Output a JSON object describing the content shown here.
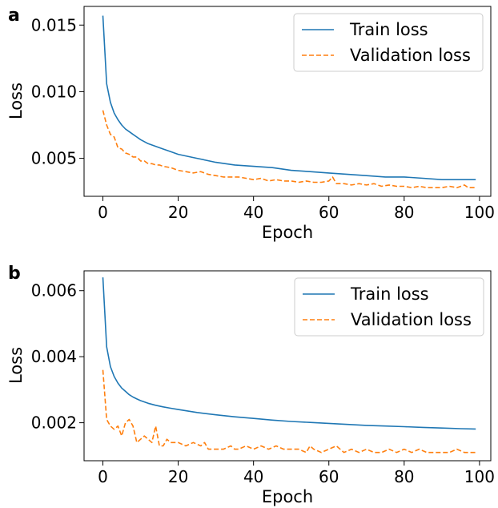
{
  "chart_data": [
    {
      "panel": "a",
      "type": "line",
      "xlabel": "Epoch",
      "ylabel": "Loss",
      "xlim": [
        -5,
        103
      ],
      "ylim": [
        0.00215,
        0.0164
      ],
      "xticks": [
        0,
        20,
        40,
        60,
        80,
        100
      ],
      "xtick_labels": [
        "0",
        "20",
        "40",
        "60",
        "80",
        "100"
      ],
      "yticks": [
        0.005,
        0.01,
        0.015
      ],
      "ytick_labels": [
        "0.005",
        "0.010",
        "0.015"
      ],
      "legend": "top-right",
      "grid": false,
      "series": [
        {
          "name": "Train loss",
          "style": "solid",
          "color": "#1f77b4",
          "x": [
            0,
            1,
            2,
            3,
            4,
            5,
            6,
            7,
            8,
            9,
            10,
            12,
            14,
            16,
            18,
            20,
            25,
            30,
            35,
            40,
            45,
            50,
            55,
            60,
            65,
            70,
            75,
            80,
            85,
            90,
            95,
            99
          ],
          "y": [
            0.0157,
            0.0106,
            0.0092,
            0.0084,
            0.0079,
            0.0075,
            0.0072,
            0.007,
            0.0068,
            0.0066,
            0.0064,
            0.0061,
            0.0059,
            0.0057,
            0.0055,
            0.0053,
            0.005,
            0.0047,
            0.0045,
            0.0044,
            0.0043,
            0.0041,
            0.004,
            0.0039,
            0.0038,
            0.0037,
            0.0036,
            0.0036,
            0.0035,
            0.0034,
            0.0034,
            0.0034
          ]
        },
        {
          "name": "Validation loss",
          "style": "dashed",
          "color": "#ff7f0e",
          "x": [
            0,
            1,
            2,
            3,
            4,
            5,
            6,
            7,
            8,
            9,
            10,
            11,
            12,
            13,
            14,
            15,
            16,
            18,
            20,
            22,
            24,
            26,
            28,
            30,
            32,
            34,
            36,
            38,
            40,
            42,
            44,
            46,
            48,
            50,
            52,
            54,
            56,
            58,
            60,
            61,
            62,
            64,
            66,
            68,
            70,
            72,
            74,
            76,
            78,
            80,
            82,
            84,
            86,
            88,
            90,
            92,
            94,
            96,
            97,
            98,
            99
          ],
          "y": [
            0.0086,
            0.0075,
            0.0068,
            0.0066,
            0.0058,
            0.0057,
            0.0054,
            0.0053,
            0.0051,
            0.0051,
            0.0048,
            0.0048,
            0.0046,
            0.0046,
            0.0045,
            0.0045,
            0.0044,
            0.0043,
            0.0041,
            0.004,
            0.0039,
            0.004,
            0.0038,
            0.0037,
            0.0036,
            0.0036,
            0.0036,
            0.0035,
            0.0034,
            0.0035,
            0.0033,
            0.0034,
            0.0033,
            0.0033,
            0.0032,
            0.0033,
            0.0032,
            0.0032,
            0.0033,
            0.0036,
            0.0031,
            0.0031,
            0.003,
            0.0031,
            0.003,
            0.0031,
            0.0029,
            0.003,
            0.0029,
            0.0029,
            0.0028,
            0.0029,
            0.0028,
            0.0028,
            0.0028,
            0.0029,
            0.0028,
            0.003,
            0.0028,
            0.0028,
            0.0028
          ]
        }
      ]
    },
    {
      "panel": "b",
      "type": "line",
      "xlabel": "Epoch",
      "ylabel": "Loss",
      "xlim": [
        -5,
        103
      ],
      "ylim": [
        0.00085,
        0.0066
      ],
      "xticks": [
        0,
        20,
        40,
        60,
        80,
        100
      ],
      "xtick_labels": [
        "0",
        "20",
        "40",
        "60",
        "80",
        "100"
      ],
      "yticks": [
        0.002,
        0.004,
        0.006
      ],
      "ytick_labels": [
        "0.002",
        "0.004",
        "0.006"
      ],
      "legend": "top-right",
      "grid": false,
      "series": [
        {
          "name": "Train loss",
          "style": "solid",
          "color": "#1f77b4",
          "x": [
            0,
            1,
            2,
            3,
            4,
            5,
            6,
            7,
            8,
            9,
            10,
            12,
            14,
            16,
            18,
            20,
            25,
            30,
            35,
            40,
            45,
            50,
            55,
            60,
            65,
            70,
            75,
            80,
            85,
            90,
            95,
            99
          ],
          "y": [
            0.0064,
            0.0043,
            0.0037,
            0.0034,
            0.0032,
            0.00305,
            0.00295,
            0.00285,
            0.00278,
            0.00272,
            0.00267,
            0.00259,
            0.00253,
            0.00248,
            0.00244,
            0.0024,
            0.00231,
            0.00224,
            0.00218,
            0.00213,
            0.00208,
            0.00204,
            0.00201,
            0.00198,
            0.00195,
            0.00192,
            0.0019,
            0.00188,
            0.00186,
            0.00184,
            0.00182,
            0.00181
          ]
        },
        {
          "name": "Validation loss",
          "style": "dashed",
          "color": "#ff7f0e",
          "x": [
            0,
            1,
            2,
            3,
            4,
            5,
            6,
            7,
            8,
            9,
            10,
            11,
            12,
            13,
            14,
            15,
            16,
            17,
            18,
            20,
            22,
            24,
            26,
            27,
            28,
            30,
            32,
            34,
            35,
            36,
            38,
            40,
            42,
            44,
            46,
            48,
            50,
            52,
            54,
            55,
            56,
            58,
            60,
            62,
            64,
            66,
            68,
            70,
            72,
            74,
            76,
            78,
            80,
            82,
            84,
            86,
            88,
            90,
            92,
            94,
            96,
            97,
            98,
            99
          ],
          "y": [
            0.0036,
            0.0021,
            0.0019,
            0.0018,
            0.0019,
            0.0016,
            0.002,
            0.0021,
            0.0019,
            0.0014,
            0.0015,
            0.0016,
            0.0015,
            0.0014,
            0.0019,
            0.0013,
            0.0013,
            0.0015,
            0.0014,
            0.0014,
            0.0013,
            0.0014,
            0.0013,
            0.0014,
            0.0012,
            0.0012,
            0.0012,
            0.0013,
            0.0012,
            0.0012,
            0.0013,
            0.0012,
            0.0013,
            0.0012,
            0.0013,
            0.0012,
            0.0012,
            0.0012,
            0.0011,
            0.0013,
            0.0012,
            0.0011,
            0.0012,
            0.0013,
            0.0011,
            0.0012,
            0.0011,
            0.0012,
            0.0011,
            0.0011,
            0.0012,
            0.0011,
            0.0012,
            0.0011,
            0.0012,
            0.0011,
            0.0011,
            0.0011,
            0.0011,
            0.0012,
            0.0011,
            0.0011,
            0.0011,
            0.0011
          ]
        }
      ]
    }
  ]
}
